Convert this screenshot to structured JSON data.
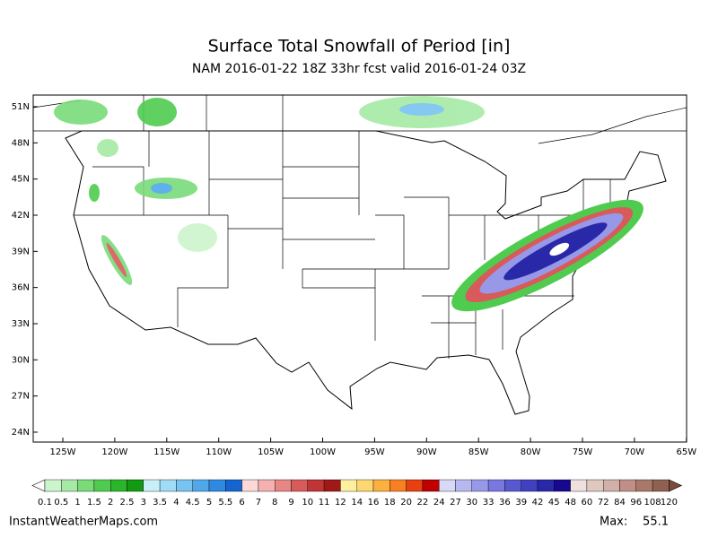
{
  "header": {
    "title": "Surface Total Snowfall of Period [in]",
    "subtitle": "NAM 2016-01-22 18Z 33hr fcst valid 2016-01-24 03Z"
  },
  "map": {
    "lat_labels": [
      "51N",
      "48N",
      "45N",
      "42N",
      "39N",
      "36N",
      "33N",
      "30N",
      "27N",
      "24N"
    ],
    "lon_labels": [
      "125W",
      "120W",
      "115W",
      "110W",
      "105W",
      "100W",
      "95W",
      "90W",
      "85W",
      "80W",
      "75W",
      "70W",
      "65W"
    ]
  },
  "colorbar": {
    "levels": [
      0.1,
      0.5,
      1,
      1.5,
      2,
      2.5,
      3,
      3.5,
      4,
      4.5,
      5,
      5.5,
      6,
      7,
      8,
      9,
      10,
      11,
      12,
      14,
      16,
      18,
      20,
      22,
      24,
      27,
      30,
      33,
      36,
      39,
      42,
      45,
      48,
      60,
      72,
      84,
      96,
      108,
      120
    ],
    "colors": [
      "#cdf5cd",
      "#a6eaa6",
      "#79dc79",
      "#4fcc4f",
      "#2bb52b",
      "#129a12",
      "#c8f0f8",
      "#a0dcf5",
      "#78c3f0",
      "#4fa8ea",
      "#2e8ae0",
      "#1565d0",
      "#fcd8d8",
      "#f5b0b0",
      "#e88585",
      "#d85a5a",
      "#c03535",
      "#a01818",
      "#fff0a0",
      "#fdd870",
      "#fbb040",
      "#f88020",
      "#e84010",
      "#c00000",
      "#d8d8f8",
      "#b8b8f0",
      "#9898e8",
      "#7878e0",
      "#5858d0",
      "#4040c0",
      "#2828a8",
      "#180890",
      "#f0e0e0",
      "#e0c8c0",
      "#d0b0a8",
      "#c09088",
      "#a87868",
      "#906050"
    ],
    "under_color": "#ffffff",
    "over_color": "#7a4a3a"
  },
  "footer": {
    "source": "InstantWeatherMaps.com",
    "max_label": "Max:",
    "max_value": 55.1
  }
}
